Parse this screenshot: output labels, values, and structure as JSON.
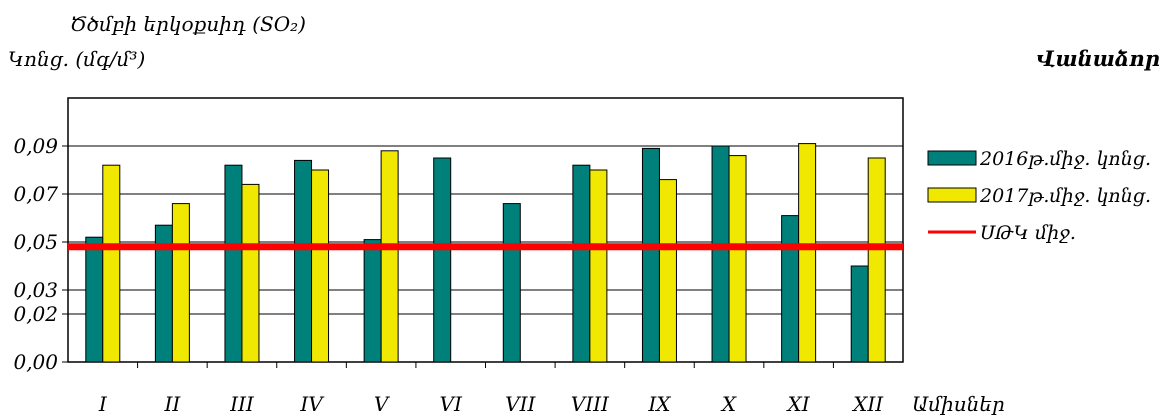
{
  "chart_data": {
    "type": "bar",
    "title": "Ծծմբի երկօքսիդ (SO₂)",
    "ylabel": "Կոնց. (մգ/մ³)",
    "station": "Վանաձոր",
    "xlabel": "Ամիսներ",
    "categories": [
      "I",
      "II",
      "III",
      "IV",
      "V",
      "VI",
      "VII",
      "VIII",
      "IX",
      "X",
      "XI",
      "XII"
    ],
    "yticks": [
      "0,00",
      "0,02",
      "0,03",
      "0,05",
      "0,07",
      "0,09"
    ],
    "ylim": [
      0,
      0.11
    ],
    "grid": true,
    "legend_position": "right",
    "series": [
      {
        "name": "2016թ.միջ. կոնց.",
        "color": "#00807a",
        "values": [
          0.052,
          0.057,
          0.082,
          0.084,
          0.051,
          0.085,
          0.066,
          0.082,
          0.089,
          0.09,
          0.061,
          0.04
        ]
      },
      {
        "name": "2017թ.միջ. կոնց.",
        "color": "#f0e800",
        "values": [
          0.082,
          0.066,
          0.074,
          0.08,
          0.088,
          null,
          null,
          0.08,
          0.076,
          0.086,
          0.091,
          0.085
        ]
      }
    ],
    "reference_line": {
      "name": "ՍԹԿ միջ.",
      "value": 0.048,
      "color": "#ff0000"
    }
  }
}
